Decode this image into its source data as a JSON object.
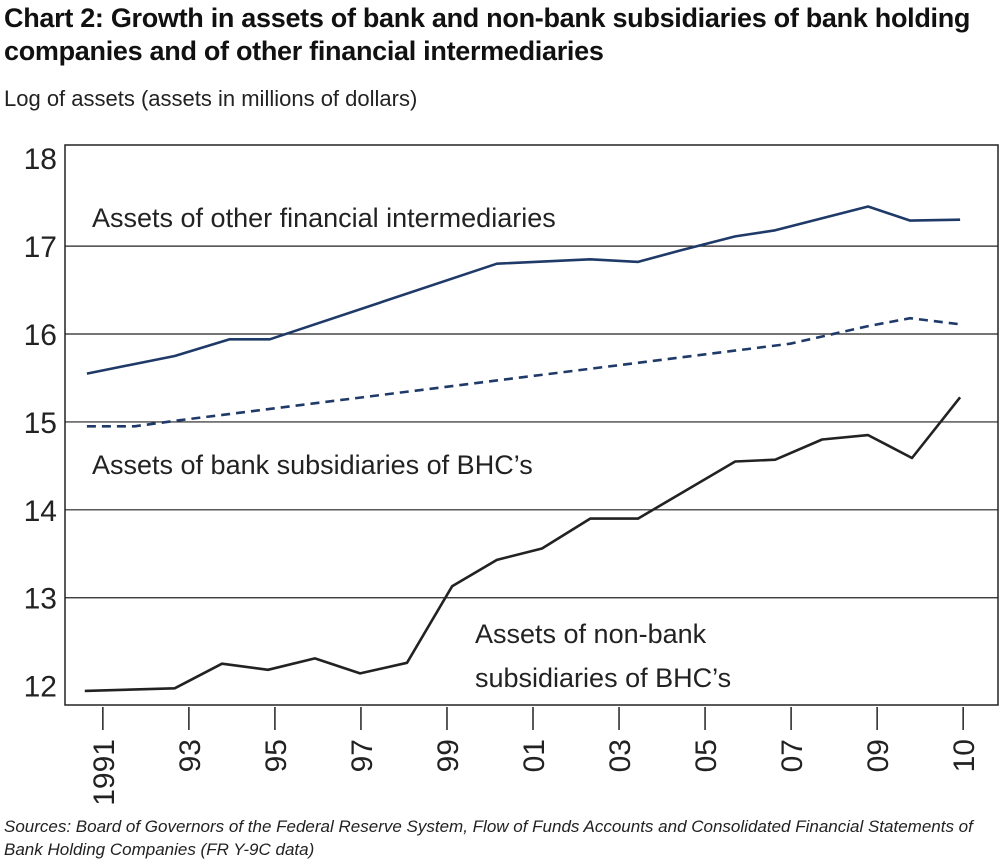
{
  "chart_data": {
    "type": "line",
    "title": "Chart 2: Growth in assets of bank and non-bank subsidiaries of bank holding companies and of other financial intermediaries",
    "ylabel": "Log of assets (assets in millions of dollars)",
    "xlabel": "",
    "ylim": [
      11.78,
      18.15
    ],
    "xlim": [
      1990.12,
      2011.81
    ],
    "grid": "horizontal",
    "y_ticks": [
      12,
      13,
      14,
      15,
      16,
      17,
      18
    ],
    "x_ticks": [
      {
        "x": 1991,
        "label": "1991"
      },
      {
        "x": 1993,
        "label": "93"
      },
      {
        "x": 1995,
        "label": "95"
      },
      {
        "x": 1997,
        "label": "97"
      },
      {
        "x": 1999,
        "label": "99"
      },
      {
        "x": 2001,
        "label": "01"
      },
      {
        "x": 2003,
        "label": "03"
      },
      {
        "x": 2005,
        "label": "05"
      },
      {
        "x": 2007,
        "label": "07"
      },
      {
        "x": 2009,
        "label": "09"
      },
      {
        "x": 2011,
        "label": "10"
      }
    ],
    "series": [
      {
        "name": "Assets of other financial intermediaries",
        "color": "#1f3a68",
        "style": "solid",
        "x": [
          1990.63,
          1992.67,
          1993.95,
          1994.88,
          2000.16,
          2002.33,
          2003.44,
          2004.42,
          2005.7,
          2006.63,
          2008.79,
          2009.77,
          2010.93
        ],
        "y": [
          15.55,
          15.75,
          15.94,
          15.94,
          16.8,
          16.85,
          16.82,
          16.95,
          17.11,
          17.18,
          17.45,
          17.29,
          17.3
        ]
      },
      {
        "name": "Assets of bank subsidiaries of BHC’s",
        "color": "#1f3a68",
        "style": "dashed",
        "x": [
          1990.63,
          1991.74,
          1992.79,
          2006.98,
          2008.79,
          2009.77,
          2010.93
        ],
        "y": [
          14.95,
          14.95,
          15.02,
          15.89,
          16.09,
          16.18,
          16.11
        ]
      },
      {
        "name": "Assets of non-bank subsidiaries of BHC’s",
        "color": "#222222",
        "style": "solid",
        "x": [
          1990.58,
          1992.67,
          1993.77,
          1994.84,
          1995.93,
          1996.98,
          1998.07,
          1999.12,
          2000.16,
          2001.21,
          2002.33,
          2003.44,
          2005.7,
          2006.63,
          2007.72,
          2008.79,
          2009.81,
          2010.93
        ],
        "y": [
          11.94,
          11.97,
          12.25,
          12.18,
          12.31,
          12.14,
          12.26,
          13.13,
          13.43,
          13.56,
          13.9,
          13.9,
          14.55,
          14.57,
          14.8,
          14.85,
          14.59,
          15.28
        ]
      }
    ],
    "annotations": {
      "other": "Assets of other financial intermediaries",
      "bank": "Assets of bank subsidiaries of BHC’s",
      "nonbank_line1": "Assets of non-bank",
      "nonbank_line2": "subsidiaries of BHC’s"
    },
    "source": "Sources: Board of Governors of the Federal Reserve System, Flow of Funds Accounts and Consolidated Financial Statements of Bank Holding Companies (FR Y-9C data)"
  }
}
